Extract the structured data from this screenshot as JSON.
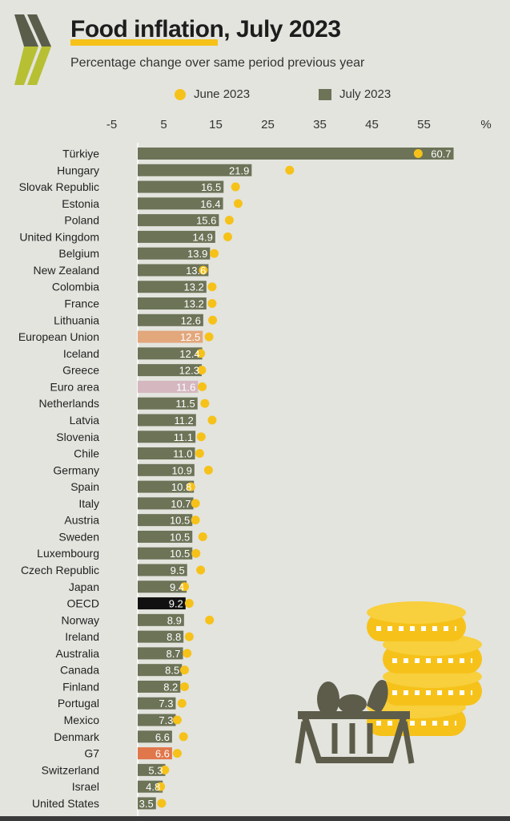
{
  "colors": {
    "june_dot": "#f6c21a",
    "bar_default": "#6c7357",
    "bar_eu": "#e3a77c",
    "bar_euro": "#d4b7bf",
    "bar_oecd": "#111111",
    "bar_g7": "#e0774b",
    "logo_dark": "#5a5d4a",
    "logo_light": "#b7c033"
  },
  "legend": {
    "june": "June 2023",
    "july": "July 2023"
  },
  "chart_data": {
    "type": "bar",
    "orientation": "horizontal",
    "title": "Food inflation, July 2023",
    "subtitle": "Percentage change over same period previous year",
    "unit_label": "%",
    "xlim": [
      -5,
      60
    ],
    "xticks": [
      -5,
      5,
      15,
      25,
      35,
      45,
      55
    ],
    "categories": [
      "Türkiye",
      "Hungary",
      "Slovak Republic",
      "Estonia",
      "Poland",
      "United Kingdom",
      "Belgium",
      "New Zealand",
      "Colombia",
      "France",
      "Lithuania",
      "European Union",
      "Iceland",
      "Greece",
      "Euro area",
      "Netherlands",
      "Latvia",
      "Slovenia",
      "Chile",
      "Germany",
      "Spain",
      "Italy",
      "Austria",
      "Sweden",
      "Luxembourg",
      "Czech Republic",
      "Japan",
      "OECD",
      "Norway",
      "Ireland",
      "Australia",
      "Canada",
      "Finland",
      "Portugal",
      "Mexico",
      "Denmark",
      "G7",
      "Switzerland",
      "Israel",
      "United States"
    ],
    "series": [
      {
        "name": "July 2023",
        "values": [
          60.7,
          21.9,
          16.5,
          16.4,
          15.6,
          14.9,
          13.9,
          13.6,
          13.2,
          13.2,
          12.6,
          12.5,
          12.4,
          12.3,
          11.6,
          11.5,
          11.2,
          11.1,
          11.0,
          10.9,
          10.8,
          10.7,
          10.5,
          10.5,
          10.5,
          9.5,
          9.4,
          9.2,
          8.9,
          8.8,
          8.7,
          8.5,
          8.2,
          7.3,
          7.3,
          6.6,
          6.6,
          5.3,
          4.8,
          3.5
        ],
        "labels": [
          "60.7",
          "21.9",
          "16.5",
          "16.4",
          "15.6",
          "14.9",
          "13.9",
          "13.6",
          "13.2",
          "13.2",
          "12.6",
          "12.5",
          "12.4",
          "12.3",
          "11.6",
          "11.5",
          "11.2",
          "11.1",
          "11.0",
          "10.9",
          "10.8",
          "10.7",
          "10.5",
          "10.5",
          "10.5",
          "9.5",
          "9.4",
          "9.2",
          "8.9",
          "8.8",
          "8.7",
          "8.5",
          "8.2",
          "7.3",
          "7.3",
          "6.6",
          "6.6",
          "5.3",
          "4.8",
          "3.5"
        ]
      },
      {
        "name": "June 2023",
        "values": [
          53.9,
          29.2,
          18.8,
          19.3,
          17.6,
          17.3,
          14.7,
          12.6,
          14.3,
          14.3,
          14.4,
          13.7,
          12.1,
          12.3,
          12.4,
          12.9,
          14.3,
          12.2,
          11.9,
          13.6,
          10.2,
          11.1,
          11.1,
          12.5,
          11.2,
          12.1,
          9.0,
          9.9,
          13.8,
          9.9,
          9.5,
          9.0,
          9.0,
          8.5,
          7.6,
          8.8,
          7.6,
          5.2,
          4.4,
          4.6
        ]
      }
    ],
    "highlight": {
      "European Union": "bar_eu",
      "Euro area": "bar_euro",
      "OECD": "bar_oecd",
      "G7": "bar_g7"
    }
  }
}
